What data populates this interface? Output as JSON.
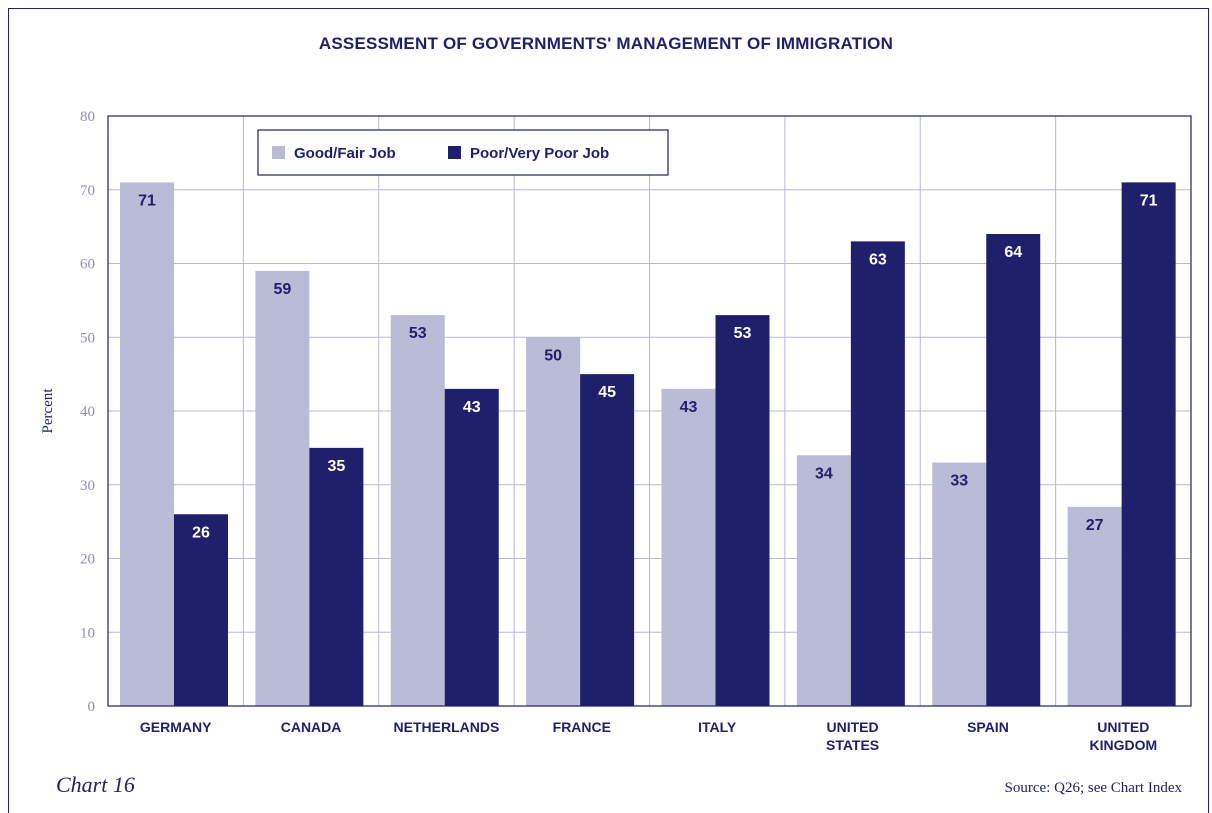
{
  "page": {
    "footer_left": "Chart 16",
    "footer_right": "Source: Q26; see Chart Index"
  },
  "chart_data": {
    "type": "bar",
    "title": "ASSESSMENT OF GOVERNMENTS' MANAGEMENT OF IMMIGRATION",
    "ylabel": "Percent",
    "xlabel": "",
    "ylim": [
      0,
      80
    ],
    "yticks": [
      0,
      10,
      20,
      30,
      40,
      50,
      60,
      70,
      80
    ],
    "grid": true,
    "legend_position": "top-left",
    "categories": [
      [
        "GERMANY"
      ],
      [
        "CANADA"
      ],
      [
        "NETHERLANDS"
      ],
      [
        "FRANCE"
      ],
      [
        "ITALY"
      ],
      [
        "UNITED",
        "STATES"
      ],
      [
        "SPAIN"
      ],
      [
        "UNITED",
        "KINGDOM"
      ]
    ],
    "series": [
      {
        "name": "Good/Fair Job",
        "color": "#babbd6",
        "label_color": "#1f1f6b",
        "values": [
          71,
          59,
          53,
          50,
          43,
          34,
          33,
          27
        ]
      },
      {
        "name": "Poor/Very Poor Job",
        "color": "#1f1f6b",
        "label_color": "#ffffff",
        "values": [
          26,
          35,
          43,
          45,
          53,
          63,
          64,
          71
        ]
      }
    ],
    "colors": {
      "grid": "#b8b8d4",
      "axis": "#1f1f6b"
    }
  }
}
